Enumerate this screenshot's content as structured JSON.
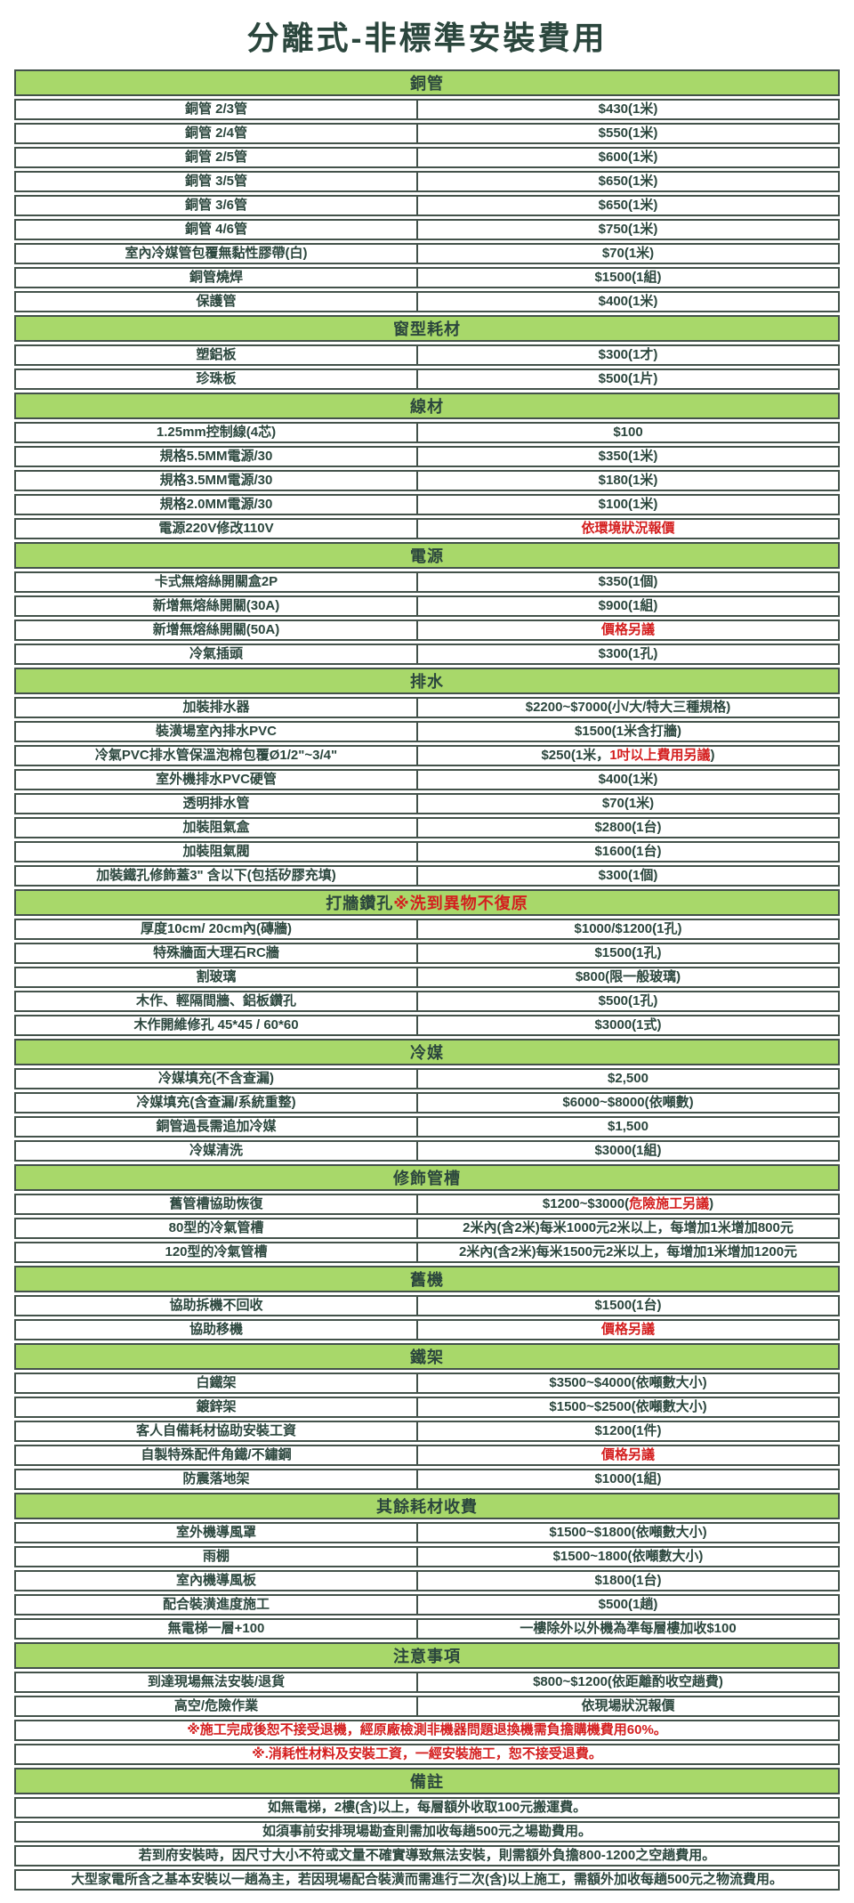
{
  "title": "分離式-非標準安裝費用",
  "colors": {
    "accent_green": "#a8d86a",
    "text_dark": "#2b463d",
    "warning_red": "#d41e1e",
    "border": "#43524a"
  },
  "sections": [
    {
      "header": [
        {
          "t": "銅管"
        }
      ],
      "rows": [
        {
          "label": "銅管 2/3管",
          "value": [
            {
              "t": "$430(1米)"
            }
          ]
        },
        {
          "label": "銅管 2/4管",
          "value": [
            {
              "t": "$550(1米)"
            }
          ]
        },
        {
          "label": "銅管 2/5管",
          "value": [
            {
              "t": "$600(1米)"
            }
          ]
        },
        {
          "label": "銅管 3/5管",
          "value": [
            {
              "t": "$650(1米)"
            }
          ]
        },
        {
          "label": "銅管 3/6管",
          "value": [
            {
              "t": "$650(1米)"
            }
          ]
        },
        {
          "label": "銅管 4/6管",
          "value": [
            {
              "t": "$750(1米)"
            }
          ]
        },
        {
          "label": "室內冷媒管包覆無黏性膠帶(白)",
          "value": [
            {
              "t": "$70(1米)"
            }
          ]
        },
        {
          "label": "銅管燒焊",
          "value": [
            {
              "t": "$1500(1組)"
            }
          ]
        },
        {
          "label": "保護管",
          "value": [
            {
              "t": "$400(1米)"
            }
          ]
        }
      ]
    },
    {
      "header": [
        {
          "t": "窗型耗材"
        }
      ],
      "rows": [
        {
          "label": "塑鋁板",
          "value": [
            {
              "t": "$300(1才)"
            }
          ]
        },
        {
          "label": "珍珠板",
          "value": [
            {
              "t": "$500(1片)"
            }
          ]
        }
      ]
    },
    {
      "header": [
        {
          "t": "線材"
        }
      ],
      "rows": [
        {
          "label": "1.25mm控制線(4芯)",
          "value": [
            {
              "t": "$100"
            }
          ]
        },
        {
          "label": "規格5.5MM電源/30",
          "value": [
            {
              "t": "$350(1米)"
            }
          ]
        },
        {
          "label": "規格3.5MM電源/30",
          "value": [
            {
              "t": "$180(1米)"
            }
          ]
        },
        {
          "label": "規格2.0MM電源/30",
          "value": [
            {
              "t": "$100(1米)"
            }
          ]
        },
        {
          "label": "電源220V修改110V",
          "value": [
            {
              "t": "依環境狀況報價",
              "red": true
            }
          ]
        }
      ]
    },
    {
      "header": [
        {
          "t": "電源"
        }
      ],
      "rows": [
        {
          "label": "卡式無熔絲開關盒2P",
          "value": [
            {
              "t": "$350(1個)"
            }
          ]
        },
        {
          "label": "新增無熔絲開關(30A)",
          "value": [
            {
              "t": "$900(1組)"
            }
          ]
        },
        {
          "label": "新增無熔絲開關(50A)",
          "value": [
            {
              "t": "價格另議",
              "red": true
            }
          ]
        },
        {
          "label": "冷氣插頭",
          "value": [
            {
              "t": "$300(1孔)"
            }
          ]
        }
      ]
    },
    {
      "header": [
        {
          "t": "排水"
        }
      ],
      "rows": [
        {
          "label": "加裝排水器",
          "value": [
            {
              "t": "$2200~$7000(小/大/特大三種規格)"
            }
          ]
        },
        {
          "label": "裝潢場室內排水PVC",
          "value": [
            {
              "t": "$1500(1米含打牆)"
            }
          ]
        },
        {
          "label": "冷氣PVC排水管保溫泡棉包覆Ø1/2\"~3/4\"",
          "value": [
            {
              "t": "$250(1米，"
            },
            {
              "t": "1吋以上費用另議",
              "red": true
            },
            {
              "t": ")"
            }
          ]
        },
        {
          "label": "室外機排水PVC硬管",
          "value": [
            {
              "t": "$400(1米)"
            }
          ]
        },
        {
          "label": "透明排水管",
          "value": [
            {
              "t": "$70(1米)"
            }
          ]
        },
        {
          "label": "加裝阻氣盒",
          "value": [
            {
              "t": "$2800(1台)"
            }
          ]
        },
        {
          "label": "加裝阻氣閥",
          "value": [
            {
              "t": "$1600(1台)"
            }
          ]
        },
        {
          "label": "加裝鐵孔修飾蓋3\" 含以下(包括矽膠充填)",
          "value": [
            {
              "t": "$300(1個)"
            }
          ]
        }
      ]
    },
    {
      "header": [
        {
          "t": "打牆鑽孔 "
        },
        {
          "t": "※洗到異物不復原",
          "red": true
        }
      ],
      "rows": [
        {
          "label": "厚度10cm/ 20cm內(磚牆)",
          "value": [
            {
              "t": "$1000/$1200(1孔)"
            }
          ]
        },
        {
          "label": "特殊牆面大理石RC牆",
          "value": [
            {
              "t": "$1500(1孔)"
            }
          ]
        },
        {
          "label": "割玻璃",
          "value": [
            {
              "t": "$800(限一般玻璃)"
            }
          ]
        },
        {
          "label": "木作、輕隔間牆、鋁板鑽孔",
          "value": [
            {
              "t": "$500(1孔)"
            }
          ]
        },
        {
          "label": "木作開維修孔 45*45 / 60*60",
          "value": [
            {
              "t": "$3000(1式)"
            }
          ]
        }
      ]
    },
    {
      "header": [
        {
          "t": "冷媒"
        }
      ],
      "rows": [
        {
          "label": "冷媒填充(不含查漏)",
          "value": [
            {
              "t": "$2,500"
            }
          ]
        },
        {
          "label": "冷媒填充(含查漏/系統重整)",
          "value": [
            {
              "t": "$6000~$8000(依噸數)"
            }
          ]
        },
        {
          "label": "銅管過長需追加冷媒",
          "value": [
            {
              "t": "$1,500"
            }
          ]
        },
        {
          "label": "冷媒清洗",
          "value": [
            {
              "t": "$3000(1組)"
            }
          ]
        }
      ]
    },
    {
      "header": [
        {
          "t": "修飾管槽"
        }
      ],
      "rows": [
        {
          "label": "舊管槽協助恢復",
          "value": [
            {
              "t": "$1200~$3000("
            },
            {
              "t": "危險施工另議",
              "red": true
            },
            {
              "t": ")"
            }
          ]
        },
        {
          "label": "80型的冷氣管槽",
          "value": [
            {
              "t": "2米內(含2米)每米1000元2米以上，每增加1米增加800元"
            }
          ]
        },
        {
          "label": "120型的冷氣管槽",
          "value": [
            {
              "t": "2米內(含2米)每米1500元2米以上，每增加1米增加1200元"
            }
          ]
        }
      ]
    },
    {
      "header": [
        {
          "t": "舊機"
        }
      ],
      "rows": [
        {
          "label": "協助拆機不回收",
          "value": [
            {
              "t": "$1500(1台)"
            }
          ]
        },
        {
          "label": "協助移機",
          "value": [
            {
              "t": "價格另議",
              "red": true
            }
          ]
        }
      ]
    },
    {
      "header": [
        {
          "t": "鐵架"
        }
      ],
      "rows": [
        {
          "label": "白鐵架",
          "value": [
            {
              "t": "$3500~$4000(依噸數大小)"
            }
          ]
        },
        {
          "label": "鍍鋅架",
          "value": [
            {
              "t": "$1500~$2500(依噸數大小)"
            }
          ]
        },
        {
          "label": "客人自備耗材協助安裝工資",
          "value": [
            {
              "t": "$1200(1件)"
            }
          ]
        },
        {
          "label": "自製特殊配件角鐵/不鏽鋼",
          "value": [
            {
              "t": "價格另議",
              "red": true
            }
          ]
        },
        {
          "label": "防震落地架",
          "value": [
            {
              "t": "$1000(1組)"
            }
          ]
        }
      ]
    },
    {
      "header": [
        {
          "t": "其餘耗材收費"
        }
      ],
      "rows": [
        {
          "label": "室外機導風罩",
          "value": [
            {
              "t": "$1500~$1800(依噸數大小)"
            }
          ]
        },
        {
          "label": "雨棚",
          "value": [
            {
              "t": "$1500~1800(依噸數大小)"
            }
          ]
        },
        {
          "label": "室內機導風板",
          "value": [
            {
              "t": "$1800(1台)"
            }
          ]
        },
        {
          "label": "配合裝潢進度施工",
          "value": [
            {
              "t": "$500(1趟)"
            }
          ]
        },
        {
          "label": "無電梯一層+100",
          "value": [
            {
              "t": "一樓除外以外機為準每層樓加收$100"
            }
          ]
        }
      ]
    },
    {
      "header": [
        {
          "t": "注意事項"
        }
      ],
      "rows": [
        {
          "label": "到達現場無法安裝/退貨",
          "value": [
            {
              "t": "$800~$1200(依距離酌收空趟費)"
            }
          ]
        },
        {
          "label": "高空/危險作業",
          "value": [
            {
              "t": "依現場狀況報價"
            }
          ]
        },
        {
          "full": [
            {
              "t": "※施工完成後恕不接受退機，經原廠檢測非機器問題退換機需負擔購機費用60%。",
              "red": true
            }
          ]
        },
        {
          "full": [
            {
              "t": "※.消耗性材料及安裝工資，一經安裝施工，恕不接受退費。",
              "red": true
            }
          ]
        }
      ]
    },
    {
      "header": [
        {
          "t": "備註"
        }
      ],
      "rows": [
        {
          "full": [
            {
              "t": "如無電梯，2樓(含)以上，每層額外收取100元搬運費。"
            }
          ]
        },
        {
          "full": [
            {
              "t": "如須事前安排現場勘查則需加收每趟500元之場勘費用。"
            }
          ]
        },
        {
          "full": [
            {
              "t": "若到府安裝時，因尺寸大小不符或文量不確實導致無法安裝，則需額外負擔800-1200之空趟費用。"
            }
          ]
        },
        {
          "full": [
            {
              "t": "大型家電所含之基本安裝以一趟為主，若因現場配合裝潢而需進行二次(含)以上施工，需額外加收每趟500元之物流費用。"
            }
          ]
        }
      ]
    }
  ]
}
